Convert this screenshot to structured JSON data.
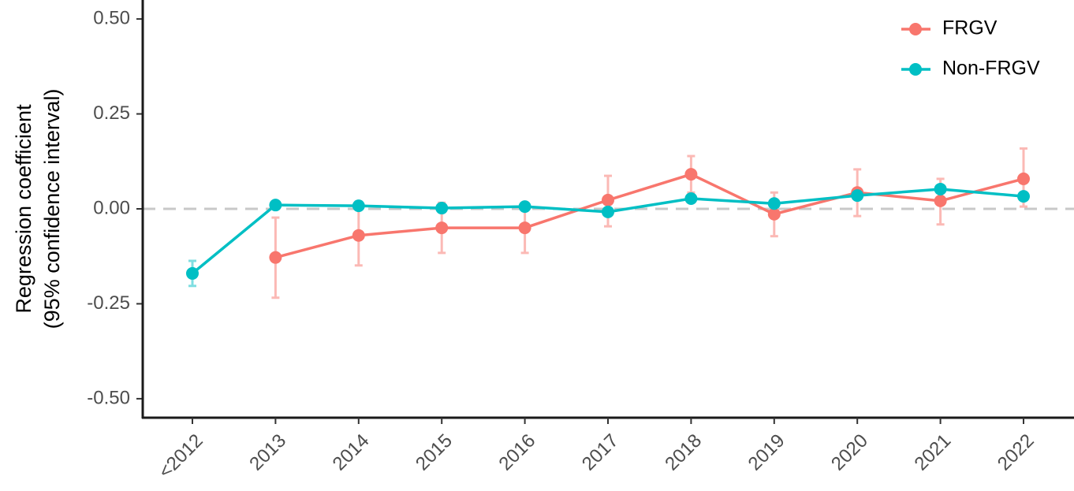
{
  "chart_data": {
    "type": "line",
    "y_label": [
      "Regression coefficient",
      "(95% confidence interval)"
    ],
    "categories": [
      "<2012",
      "2013",
      "2014",
      "2015",
      "2016",
      "2017",
      "2018",
      "2019",
      "2020",
      "2021",
      "2022"
    ],
    "series": [
      {
        "name": "FRGV",
        "color": "#f8766d",
        "values": [
          null,
          -0.128,
          -0.07,
          -0.05,
          -0.05,
          0.023,
          0.091,
          -0.014,
          0.043,
          0.021,
          0.079
        ],
        "lower": [
          null,
          -0.234,
          -0.149,
          -0.116,
          -0.116,
          -0.046,
          0.043,
          -0.072,
          -0.019,
          -0.041,
          0.006
        ],
        "upper": [
          null,
          -0.023,
          0.009,
          0.016,
          0.016,
          0.087,
          0.139,
          0.043,
          0.104,
          0.079,
          0.159
        ]
      },
      {
        "name": "Non-FRGV",
        "color": "#00bfc4",
        "values": [
          -0.17,
          0.01,
          0.008,
          0.002,
          0.006,
          -0.008,
          0.027,
          0.014,
          0.035,
          0.052,
          0.033
        ],
        "lower": [
          -0.203,
          0.004,
          0.003,
          -0.003,
          0.001,
          -0.013,
          0.022,
          0.009,
          0.03,
          0.046,
          0.028
        ],
        "upper": [
          -0.137,
          0.016,
          0.013,
          0.007,
          0.011,
          -0.003,
          0.032,
          0.019,
          0.04,
          0.058,
          0.038
        ]
      }
    ],
    "ylim": [
      -0.55,
      0.55
    ],
    "yticks": [
      {
        "value": 0.5,
        "label": "0.50"
      },
      {
        "value": 0.25,
        "label": "0.25"
      },
      {
        "value": 0,
        "label": "0.00"
      },
      {
        "value": -0.25,
        "label": "-0.25"
      },
      {
        "value": -0.5,
        "label": "-0.50"
      }
    ],
    "hline": 0,
    "legend": "top-right"
  }
}
